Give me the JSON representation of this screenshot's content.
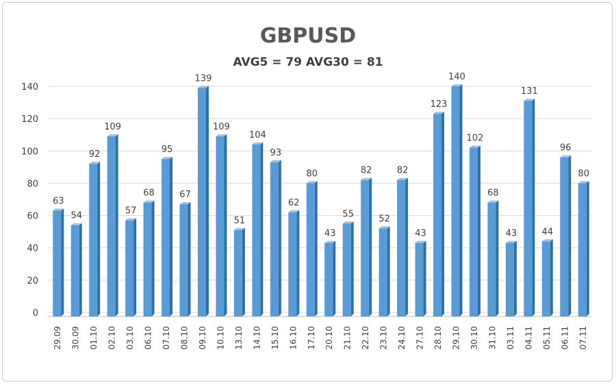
{
  "chart_data": {
    "type": "bar",
    "title": "GBPUSD",
    "subtitle": "AVG5 = 79 AVG30 = 81",
    "categories": [
      "29.09",
      "30.09",
      "01.10",
      "02.10",
      "03.10",
      "06.10",
      "07.10",
      "08.10",
      "09.10",
      "10.10",
      "13.10",
      "14.10",
      "15.10",
      "16.10",
      "17.10",
      "20.10",
      "21.10",
      "22.10",
      "23.10",
      "24.10",
      "27.10",
      "28.10",
      "29.10",
      "30.10",
      "31.10",
      "03.11",
      "04.11",
      "05.11",
      "06.11",
      "07.11"
    ],
    "values": [
      63,
      54,
      92,
      109,
      57,
      68,
      95,
      67,
      139,
      109,
      51,
      104,
      93,
      62,
      80,
      43,
      55,
      82,
      52,
      82,
      43,
      123,
      140,
      102,
      68,
      43,
      131,
      44,
      96,
      80
    ],
    "ylim": [
      0,
      140
    ],
    "yticks": [
      0,
      20,
      40,
      60,
      80,
      100,
      120,
      140
    ],
    "grid": true,
    "legend": "none",
    "colors": {
      "bar_front": "#5b9bd5",
      "bar_side": "#2e6fa8",
      "bar_top": "#9cc3e6",
      "grid": "#d9d9d9",
      "text": "#404040",
      "title": "#595959"
    }
  }
}
